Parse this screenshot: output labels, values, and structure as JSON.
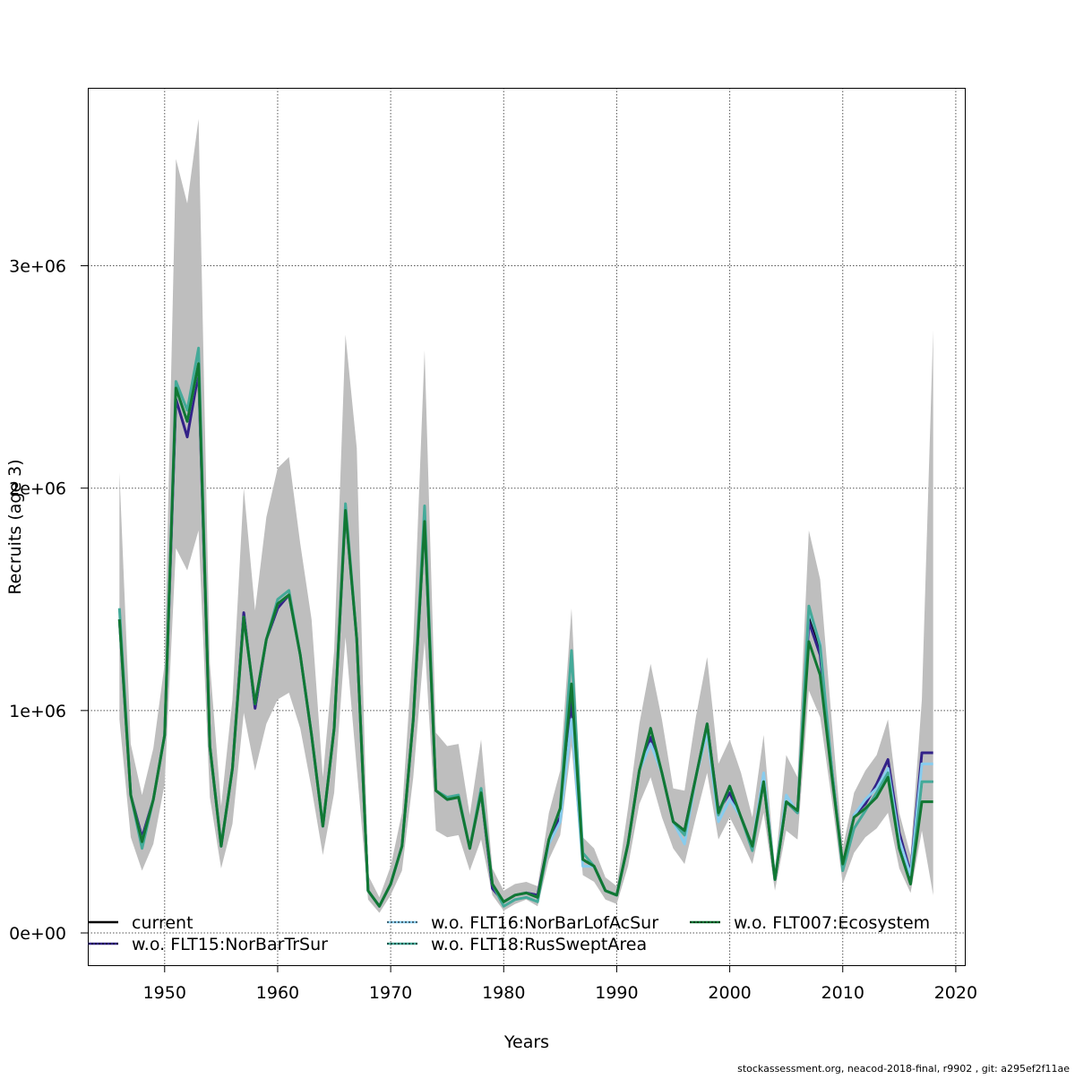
{
  "chart_data": {
    "type": "line",
    "title": "",
    "xlabel": "Years",
    "ylabel": "Recruits (age 3)",
    "xlim": [
      1943.2,
      2020.8
    ],
    "ylim": [
      -145000,
      3800000
    ],
    "grid": true,
    "x_ticks": [
      1950,
      1960,
      1970,
      1980,
      1990,
      2000,
      2010,
      2020
    ],
    "x_tick_labels": [
      "1950",
      "1960",
      "1970",
      "1980",
      "1990",
      "2000",
      "2010",
      "2020"
    ],
    "y_ticks": [
      0,
      1000000,
      2000000,
      3000000
    ],
    "y_tick_labels": [
      "0e+00",
      "1e+06",
      "2e+06",
      "3e+06"
    ],
    "legend_placement": "bottom",
    "x": [
      1946,
      1947,
      1948,
      1949,
      1950,
      1951,
      1952,
      1953,
      1954,
      1955,
      1956,
      1957,
      1958,
      1959,
      1960,
      1961,
      1962,
      1963,
      1964,
      1965,
      1966,
      1967,
      1968,
      1969,
      1970,
      1971,
      1972,
      1973,
      1974,
      1975,
      1976,
      1977,
      1978,
      1979,
      1980,
      1981,
      1982,
      1983,
      1984,
      1985,
      1986,
      1987,
      1988,
      1989,
      1990,
      1991,
      1992,
      1993,
      1994,
      1995,
      1996,
      1997,
      1998,
      1999,
      2000,
      2001,
      2002,
      2003,
      2004,
      2005,
      2006,
      2007,
      2008,
      2009,
      2010,
      2011,
      2012,
      2013,
      2014,
      2015,
      2016,
      2017,
      2018
    ],
    "confidence_band": {
      "name": "current 95% CI",
      "color": "#bebebe",
      "lower": [
        960000,
        430000,
        280000,
        400000,
        670000,
        1730000,
        1630000,
        1810000,
        610000,
        290000,
        490000,
        990000,
        730000,
        940000,
        1050000,
        1080000,
        920000,
        650000,
        350000,
        630000,
        1330000,
        740000,
        150000,
        90000,
        170000,
        280000,
        700000,
        1310000,
        460000,
        430000,
        440000,
        280000,
        420000,
        170000,
        100000,
        130000,
        150000,
        120000,
        330000,
        440000,
        840000,
        260000,
        230000,
        150000,
        130000,
        300000,
        580000,
        700000,
        520000,
        380000,
        310000,
        520000,
        720000,
        420000,
        520000,
        420000,
        310000,
        540000,
        190000,
        460000,
        420000,
        1090000,
        970000,
        610000,
        220000,
        360000,
        430000,
        470000,
        540000,
        290000,
        180000,
        460000,
        170000
      ],
      "upper": [
        2070000,
        850000,
        620000,
        830000,
        1210000,
        3480000,
        3280000,
        3660000,
        1210000,
        570000,
        1050000,
        2000000,
        1450000,
        1870000,
        2090000,
        2140000,
        1750000,
        1410000,
        700000,
        1270000,
        2690000,
        2180000,
        260000,
        160000,
        300000,
        540000,
        1310000,
        2620000,
        900000,
        840000,
        850000,
        530000,
        870000,
        290000,
        190000,
        220000,
        230000,
        210000,
        540000,
        730000,
        1460000,
        430000,
        380000,
        250000,
        210000,
        560000,
        940000,
        1210000,
        960000,
        650000,
        640000,
        970000,
        1240000,
        760000,
        870000,
        720000,
        520000,
        890000,
        290000,
        800000,
        700000,
        1810000,
        1590000,
        970000,
        380000,
        630000,
        730000,
        800000,
        960000,
        540000,
        350000,
        1050000,
        2710000
      ]
    },
    "series": [
      {
        "name": "current",
        "color": "#000000",
        "values": [
          1410000,
          620000,
          410000,
          600000,
          890000,
          2450000,
          2300000,
          2560000,
          840000,
          390000,
          740000,
          1420000,
          1030000,
          1320000,
          1480000,
          1520000,
          1250000,
          890000,
          480000,
          920000,
          1900000,
          1320000,
          190000,
          120000,
          220000,
          390000,
          960000,
          1850000,
          640000,
          600000,
          610000,
          380000,
          630000,
          220000,
          140000,
          170000,
          180000,
          160000,
          420000,
          560000,
          1120000,
          330000,
          300000,
          190000,
          170000,
          400000,
          730000,
          920000,
          720000,
          500000,
          460000,
          700000,
          940000,
          540000,
          660000,
          520000,
          390000,
          680000,
          240000,
          590000,
          540000,
          1420000,
          1270000,
          750000,
          300000,
          470000,
          550000,
          630000,
          720000,
          400000,
          240000,
          680000,
          680000
        ]
      },
      {
        "name": "w.o. FLT15:NorBarTrSur",
        "color": "#332288",
        "values": [
          1410000,
          620000,
          430000,
          600000,
          890000,
          2400000,
          2230000,
          2520000,
          840000,
          390000,
          740000,
          1440000,
          1010000,
          1320000,
          1460000,
          1520000,
          1250000,
          890000,
          480000,
          920000,
          1900000,
          1320000,
          190000,
          120000,
          220000,
          390000,
          960000,
          1850000,
          640000,
          600000,
          610000,
          380000,
          630000,
          200000,
          140000,
          170000,
          180000,
          170000,
          420000,
          520000,
          1050000,
          330000,
          300000,
          190000,
          170000,
          400000,
          730000,
          880000,
          720000,
          500000,
          460000,
          700000,
          940000,
          550000,
          630000,
          520000,
          390000,
          680000,
          240000,
          590000,
          540000,
          1400000,
          1250000,
          750000,
          300000,
          530000,
          580000,
          670000,
          780000,
          450000,
          270000,
          810000,
          810000
        ]
      },
      {
        "name": "w.o. FLT16:NorBarLofAcSur",
        "color": "#88ccee",
        "values": [
          1410000,
          620000,
          410000,
          600000,
          890000,
          2450000,
          2300000,
          2560000,
          840000,
          390000,
          740000,
          1420000,
          1030000,
          1320000,
          1480000,
          1520000,
          1250000,
          890000,
          480000,
          920000,
          1900000,
          1320000,
          190000,
          120000,
          220000,
          390000,
          960000,
          1850000,
          640000,
          600000,
          610000,
          380000,
          630000,
          220000,
          140000,
          170000,
          180000,
          160000,
          400000,
          500000,
          960000,
          300000,
          300000,
          190000,
          170000,
          400000,
          730000,
          850000,
          720000,
          500000,
          400000,
          700000,
          900000,
          500000,
          600000,
          520000,
          390000,
          720000,
          240000,
          620000,
          540000,
          1450000,
          1300000,
          750000,
          300000,
          530000,
          600000,
          650000,
          740000,
          420000,
          260000,
          760000,
          760000
        ]
      },
      {
        "name": "w.o. FLT18:RusSweptArea",
        "color": "#44aa99",
        "values": [
          1460000,
          620000,
          380000,
          600000,
          890000,
          2480000,
          2350000,
          2630000,
          840000,
          390000,
          740000,
          1420000,
          1030000,
          1320000,
          1500000,
          1540000,
          1250000,
          890000,
          480000,
          920000,
          1930000,
          1320000,
          190000,
          120000,
          220000,
          390000,
          960000,
          1920000,
          640000,
          610000,
          620000,
          380000,
          650000,
          220000,
          120000,
          150000,
          160000,
          140000,
          420000,
          560000,
          1270000,
          360000,
          300000,
          190000,
          170000,
          400000,
          730000,
          920000,
          720000,
          500000,
          440000,
          700000,
          940000,
          530000,
          660000,
          520000,
          370000,
          680000,
          240000,
          590000,
          540000,
          1470000,
          1290000,
          750000,
          280000,
          470000,
          550000,
          630000,
          720000,
          380000,
          220000,
          680000,
          680000
        ]
      },
      {
        "name": "w.o. FLT007:Ecosystem",
        "color": "#117733",
        "values": [
          1410000,
          620000,
          410000,
          600000,
          890000,
          2450000,
          2300000,
          2560000,
          840000,
          390000,
          740000,
          1420000,
          1030000,
          1320000,
          1480000,
          1520000,
          1250000,
          890000,
          480000,
          920000,
          1900000,
          1320000,
          190000,
          120000,
          220000,
          390000,
          960000,
          1850000,
          640000,
          600000,
          610000,
          380000,
          630000,
          220000,
          140000,
          170000,
          180000,
          160000,
          420000,
          560000,
          1120000,
          330000,
          300000,
          190000,
          170000,
          400000,
          730000,
          920000,
          720000,
          500000,
          460000,
          700000,
          940000,
          540000,
          660000,
          520000,
          390000,
          680000,
          240000,
          590000,
          550000,
          1310000,
          1160000,
          720000,
          310000,
          520000,
          560000,
          610000,
          700000,
          380000,
          220000,
          590000,
          590000
        ]
      }
    ]
  },
  "footer": "stockassessment.org, neacod-2018-final, r9902 , git: a295ef2f11ae"
}
